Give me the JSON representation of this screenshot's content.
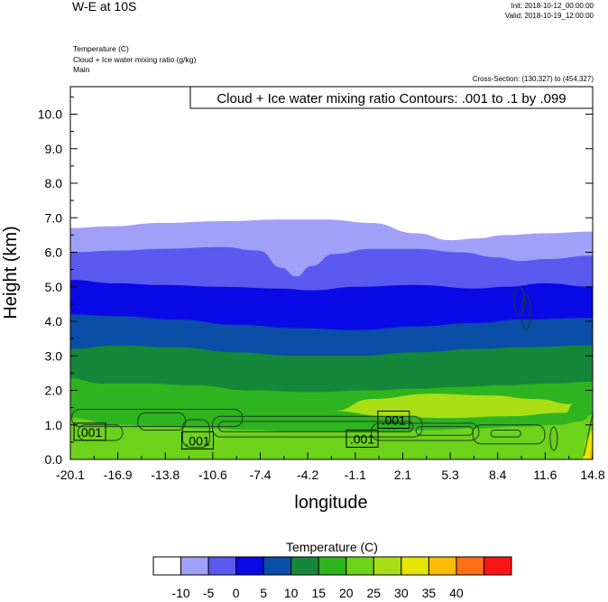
{
  "header": {
    "title": "W-E at 10S",
    "init": "Init: 2018-10-12_00:00:00",
    "valid": "Valid: 2018-10-19_12:00:00",
    "field_temperature": "Temperature   (C)",
    "field_cloud": "Cloud + Ice water mixing ratio   (g/kg)",
    "model_label": "Main",
    "cross_section": "Cross-Section: (130,327) to (454,327)"
  },
  "chart_data": {
    "type": "heatmap",
    "annotation": "Cloud + Ice water mixing ratio Contours: .001 to .1 by .099",
    "xlabel": "longitude",
    "ylabel": "Height (km)",
    "xlim": [
      -20.1,
      14.8
    ],
    "ylim": [
      0.0,
      10.8
    ],
    "x_ticks": [
      "-20.1",
      "-16.9",
      "-13.8",
      "-10.6",
      "-7.4",
      "-4.2",
      "-1.1",
      "2.1",
      "5.3",
      "8.4",
      "11.6",
      "14.8"
    ],
    "y_ticks": [
      {
        "value": 0.0,
        "label": "0.0"
      },
      {
        "value": 1.0,
        "label": "1.0"
      },
      {
        "value": 2.0,
        "label": "2.0"
      },
      {
        "value": 3.0,
        "label": "3.0"
      },
      {
        "value": 4.0,
        "label": "4.0"
      },
      {
        "value": 5.0,
        "label": "5.0"
      },
      {
        "value": 6.0,
        "label": "6.0"
      },
      {
        "value": 7.0,
        "label": "7.0"
      },
      {
        "value": 8.0,
        "label": "8.0"
      },
      {
        "value": 9.0,
        "label": "9.0"
      },
      {
        "value": 10.0,
        "label": "10.0"
      }
    ],
    "colorbar": {
      "title": "Temperature  (C)",
      "colors": [
        "#ffffff",
        "#a0a0f8",
        "#5a5af0",
        "#0a0ae6",
        "#0a4ea8",
        "#14873a",
        "#2eb41e",
        "#6cd21a",
        "#aade14",
        "#e4e600",
        "#fdbb00",
        "#fe6e14",
        "#fe1414"
      ],
      "labels": [
        "-10",
        "-5",
        "0",
        "5",
        "10",
        "15",
        "20",
        "25",
        "30",
        "35",
        "40"
      ]
    },
    "temperature_bands": [
      {
        "color": "#ffffff",
        "range": "< -10"
      },
      {
        "color": "#a0a0f8",
        "range": "-10 to -5",
        "boundary_km": [
          [
            -20.1,
            6.7
          ],
          [
            -17.5,
            6.75
          ],
          [
            -14,
            6.85
          ],
          [
            -10,
            6.9
          ],
          [
            -6,
            6.95
          ],
          [
            -3,
            6.95
          ],
          [
            0,
            6.85
          ],
          [
            3,
            6.55
          ],
          [
            5.3,
            6.35
          ],
          [
            7,
            6.4
          ],
          [
            9,
            6.5
          ],
          [
            11.6,
            6.55
          ],
          [
            14.8,
            6.6
          ]
        ]
      },
      {
        "color": "#5a5af0",
        "range": "-5 to 0",
        "boundary_km": [
          [
            -20.1,
            6.0
          ],
          [
            -17,
            6.05
          ],
          [
            -14,
            6.1
          ],
          [
            -10,
            6.15
          ],
          [
            -7.5,
            6.05
          ],
          [
            -6,
            5.55
          ],
          [
            -5,
            5.3
          ],
          [
            -4,
            5.6
          ],
          [
            -2.5,
            5.95
          ],
          [
            0,
            6.1
          ],
          [
            3,
            6.1
          ],
          [
            6,
            6.0
          ],
          [
            8.4,
            5.85
          ],
          [
            10,
            5.75
          ],
          [
            11.6,
            5.8
          ],
          [
            14.8,
            5.9
          ]
        ]
      },
      {
        "color": "#0a0ae6",
        "range": "0 to 5",
        "boundary_km": [
          [
            -20.1,
            5.2
          ],
          [
            -17,
            5.1
          ],
          [
            -14,
            5.05
          ],
          [
            -10,
            5.0
          ],
          [
            -6,
            4.95
          ],
          [
            -4,
            4.9
          ],
          [
            -1,
            5.0
          ],
          [
            3,
            5.05
          ],
          [
            7,
            4.95
          ],
          [
            9,
            5.0
          ],
          [
            11.6,
            5.1
          ],
          [
            14.8,
            5.0
          ]
        ]
      },
      {
        "color": "#0a4ea8",
        "range": "5 to 10",
        "boundary_km": [
          [
            -20.1,
            4.2
          ],
          [
            -17,
            4.15
          ],
          [
            -13,
            4.05
          ],
          [
            -9,
            3.9
          ],
          [
            -5,
            3.8
          ],
          [
            -1,
            3.75
          ],
          [
            3,
            3.85
          ],
          [
            7,
            3.95
          ],
          [
            10,
            4.05
          ],
          [
            14.8,
            4.1
          ]
        ]
      },
      {
        "color": "#14873a",
        "range": "10 to 15",
        "boundary_km": [
          [
            -20.1,
            3.2
          ],
          [
            -17,
            3.3
          ],
          [
            -13,
            3.25
          ],
          [
            -9,
            3.1
          ],
          [
            -5,
            3.0
          ],
          [
            -1,
            3.0
          ],
          [
            3,
            3.1
          ],
          [
            7,
            3.2
          ],
          [
            10,
            3.25
          ],
          [
            14.8,
            3.3
          ]
        ]
      },
      {
        "color": "#2eb41e",
        "range": "15 to 20",
        "boundary_km": [
          [
            -20.1,
            2.35
          ],
          [
            -18,
            2.2
          ],
          [
            -15,
            2.2
          ],
          [
            -12,
            2.15
          ],
          [
            -8,
            2.0
          ],
          [
            -4,
            1.95
          ],
          [
            0,
            2.0
          ],
          [
            3,
            2.05
          ],
          [
            6,
            2.1
          ],
          [
            9,
            2.15
          ],
          [
            12,
            2.2
          ],
          [
            14.8,
            2.25
          ]
        ]
      },
      {
        "color": "#6cd21a",
        "range": "20 to 25",
        "boundary_km": [
          [
            -20.1,
            1.2
          ],
          [
            -17,
            1.0
          ],
          [
            -14,
            0.95
          ],
          [
            -11,
            0.9
          ],
          [
            -8,
            0.85
          ],
          [
            -5,
            0.8
          ],
          [
            -2,
            0.8
          ],
          [
            1,
            0.8
          ],
          [
            4,
            0.85
          ],
          [
            7,
            0.9
          ],
          [
            10,
            0.95
          ],
          [
            12.5,
            1.0
          ],
          [
            14,
            1.1
          ],
          [
            14.8,
            1.3
          ]
        ]
      },
      {
        "color": "#aade14",
        "range": "25 to 30",
        "blob": [
          [
            -2.5,
            1.4
          ],
          [
            0,
            1.75
          ],
          [
            4,
            1.9
          ],
          [
            8,
            1.85
          ],
          [
            11,
            1.75
          ],
          [
            13.5,
            1.6
          ],
          [
            13,
            1.35
          ],
          [
            9,
            1.25
          ],
          [
            5,
            1.2
          ],
          [
            1,
            1.25
          ]
        ]
      },
      {
        "color": "#e4e600",
        "range": "30 to 35",
        "blob": [
          [
            14.1,
            0.0
          ],
          [
            14.8,
            0.0
          ],
          [
            14.8,
            0.85
          ],
          [
            14.4,
            0.6
          ]
        ]
      },
      {
        "color": "#fdbb00",
        "range": "35 to 40",
        "blob": [
          [
            14.5,
            0.0
          ],
          [
            14.8,
            0.0
          ],
          [
            14.8,
            0.35
          ]
        ]
      }
    ],
    "cloud_contours": [
      {
        "label": ".001",
        "label_at": [
          -18.8,
          0.8
        ]
      },
      {
        "label": ".001",
        "label_at": [
          -11.6,
          0.55
        ]
      },
      {
        "label": ".001",
        "label_at": [
          -0.6,
          0.6
        ]
      },
      {
        "label": ".001",
        "label_at": [
          1.5,
          1.15
        ]
      }
    ]
  }
}
